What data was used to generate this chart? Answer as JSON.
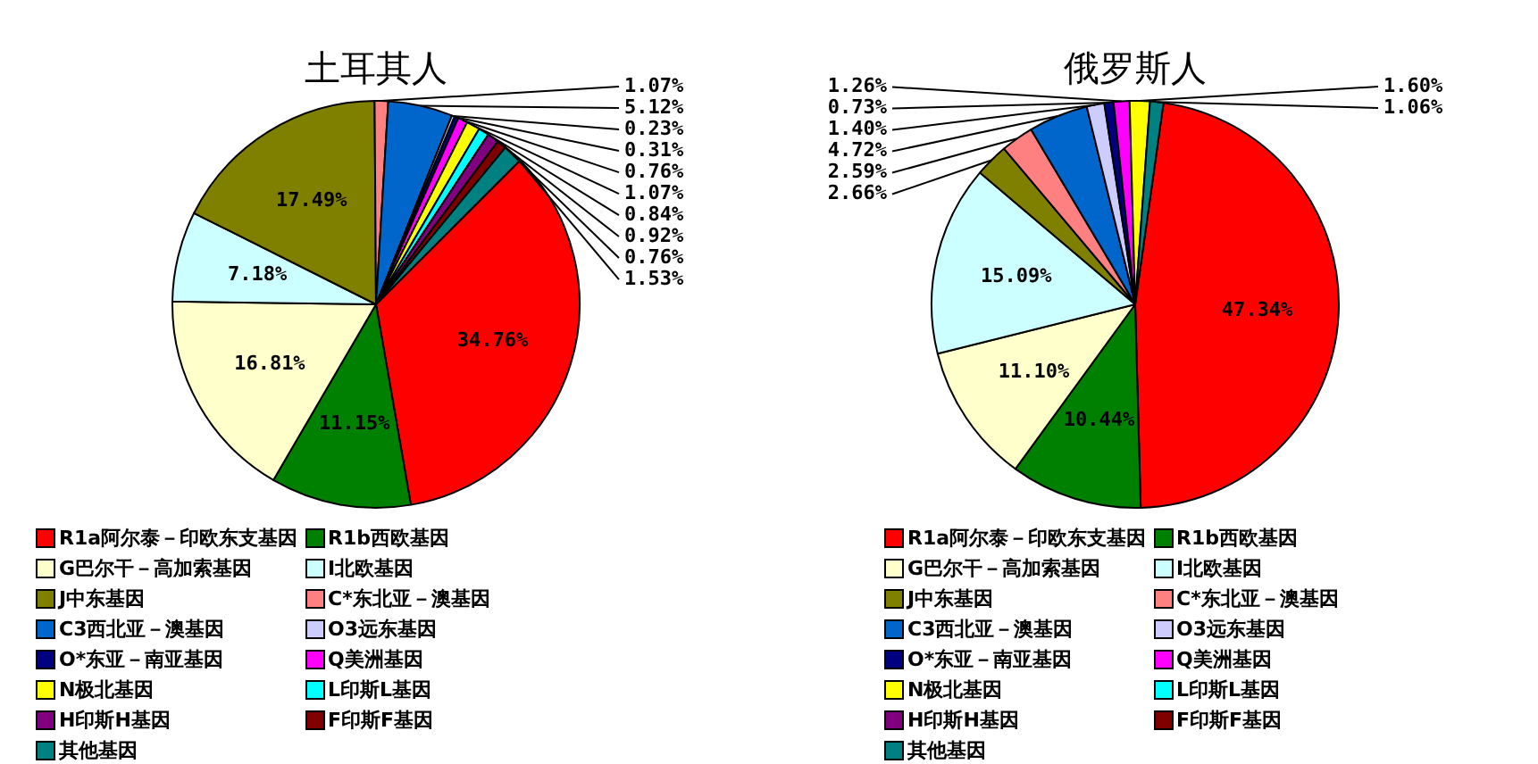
{
  "chart_data": [
    {
      "type": "pie",
      "title": "土耳其人",
      "legend": "bottom",
      "value_labels": [
        "34.76%",
        "11.15%",
        "16.81%",
        "7.18%",
        "17.49%",
        "1.07%",
        "5.12%",
        "0.23%",
        "0.31%",
        "0.76%",
        "1.07%",
        "0.84%",
        "0.92%",
        "0.76%",
        "1.53%"
      ],
      "categories": [
        "R1a阿尔泰－印欧东支基因",
        "R1b西欧基因",
        "G巴尔干－高加索基因",
        "I北欧基因",
        "J中东基因",
        "C*东北亚－澳基因",
        "C3西北亚－澳基因",
        "O3远东基因",
        "O*东亚－南亚基因",
        "Q美洲基因",
        "N极北基因",
        "L印斯L基因",
        "H印斯H基因",
        "F印斯F基因",
        "其他基因"
      ],
      "values": [
        34.76,
        11.15,
        16.81,
        7.18,
        17.49,
        1.07,
        5.12,
        0.23,
        0.31,
        0.76,
        1.07,
        0.84,
        0.92,
        0.76,
        1.53
      ],
      "colors": [
        "#ff0000",
        "#008000",
        "#ffffcc",
        "#ccffff",
        "#808000",
        "#ff8080",
        "#0066cc",
        "#ccccff",
        "#000080",
        "#ff00ff",
        "#ffff00",
        "#00ffff",
        "#800080",
        "#800000",
        "#008080"
      ]
    },
    {
      "type": "pie",
      "title": "俄罗斯人",
      "legend": "bottom",
      "value_labels": [
        "47.34%",
        "10.44%",
        "11.10%",
        "15.09%",
        "2.66%",
        "2.59%",
        "4.72%",
        "1.40%",
        "0.73%",
        "1.26%",
        "1.60%",
        null,
        null,
        null,
        "1.06%"
      ],
      "categories": [
        "R1a阿尔泰－印欧东支基因",
        "R1b西欧基因",
        "G巴尔干－高加索基因",
        "I北欧基因",
        "J中东基因",
        "C*东北亚－澳基因",
        "C3西北亚－澳基因",
        "O3远东基因",
        "O*东亚－南亚基因",
        "Q美洲基因",
        "N极北基因",
        "L印斯L基因",
        "H印斯H基因",
        "F印斯F基因",
        "其他基因"
      ],
      "values": [
        47.34,
        10.44,
        11.1,
        15.09,
        2.66,
        2.59,
        4.72,
        1.4,
        0.73,
        1.26,
        1.6,
        null,
        null,
        null,
        1.06
      ],
      "colors": [
        "#ff0000",
        "#008000",
        "#ffffcc",
        "#ccffff",
        "#808000",
        "#ff8080",
        "#0066cc",
        "#ccccff",
        "#000080",
        "#ff00ff",
        "#ffff00",
        "#00ffff",
        "#800080",
        "#800000",
        "#008080"
      ]
    }
  ]
}
